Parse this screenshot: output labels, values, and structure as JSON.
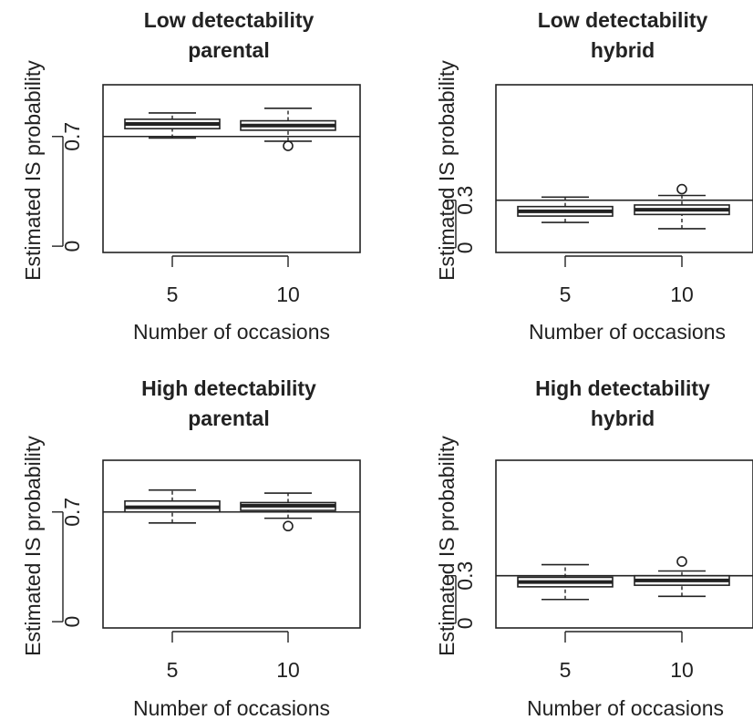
{
  "chart_data": [
    {
      "type": "box",
      "title": [
        "Low detectability",
        "parental"
      ],
      "xlabel": "Number of occasions",
      "ylabel": "Estimated IS probability",
      "categories": [
        "5",
        "10"
      ],
      "yticks": [
        "0",
        "0.7"
      ],
      "ylim": [
        -0.04,
        1.03
      ],
      "reference_line": 0.7,
      "boxes": [
        {
          "whisker_low": 0.69,
          "q1": 0.75,
          "median": 0.78,
          "q3": 0.81,
          "whisker_high": 0.85,
          "outliers": []
        },
        {
          "whisker_low": 0.67,
          "q1": 0.74,
          "median": 0.77,
          "q3": 0.8,
          "whisker_high": 0.88,
          "outliers": [
            0.64
          ]
        }
      ]
    },
    {
      "type": "box",
      "title": [
        "Low detectability",
        "hybrid"
      ],
      "xlabel": "Number of occasions",
      "ylabel": "Estimated IS probability",
      "categories": [
        "5",
        "10"
      ],
      "yticks": [
        "0",
        "0.3"
      ],
      "ylim": [
        -0.03,
        1.03
      ],
      "reference_line": 0.3,
      "boxes": [
        {
          "whisker_low": 0.16,
          "q1": 0.2,
          "median": 0.23,
          "q3": 0.26,
          "whisker_high": 0.32,
          "outliers": []
        },
        {
          "whisker_low": 0.12,
          "q1": 0.21,
          "median": 0.24,
          "q3": 0.27,
          "whisker_high": 0.33,
          "outliers": [
            0.37
          ]
        }
      ]
    },
    {
      "type": "box",
      "title": [
        "High detectability",
        "parental"
      ],
      "xlabel": "Number of occasions",
      "ylabel": "Estimated IS probability",
      "categories": [
        "5",
        "10"
      ],
      "yticks": [
        "0",
        "0.7"
      ],
      "ylim": [
        -0.04,
        1.03
      ],
      "reference_line": 0.7,
      "boxes": [
        {
          "whisker_low": 0.63,
          "q1": 0.7,
          "median": 0.73,
          "q3": 0.77,
          "whisker_high": 0.84,
          "outliers": []
        },
        {
          "whisker_low": 0.66,
          "q1": 0.71,
          "median": 0.74,
          "q3": 0.76,
          "whisker_high": 0.82,
          "outliers": [
            0.61
          ]
        }
      ]
    },
    {
      "type": "box",
      "title": [
        "High detectability",
        "hybrid"
      ],
      "xlabel": "Number of occasions",
      "ylabel": "Estimated IS probability",
      "categories": [
        "5",
        "10"
      ],
      "yticks": [
        "0",
        "0.3"
      ],
      "ylim": [
        -0.03,
        1.03
      ],
      "reference_line": 0.3,
      "boxes": [
        {
          "whisker_low": 0.15,
          "q1": 0.23,
          "median": 0.26,
          "q3": 0.29,
          "whisker_high": 0.37,
          "outliers": []
        },
        {
          "whisker_low": 0.17,
          "q1": 0.24,
          "median": 0.27,
          "q3": 0.3,
          "whisker_high": 0.33,
          "outliers": [
            0.39
          ]
        }
      ]
    }
  ]
}
